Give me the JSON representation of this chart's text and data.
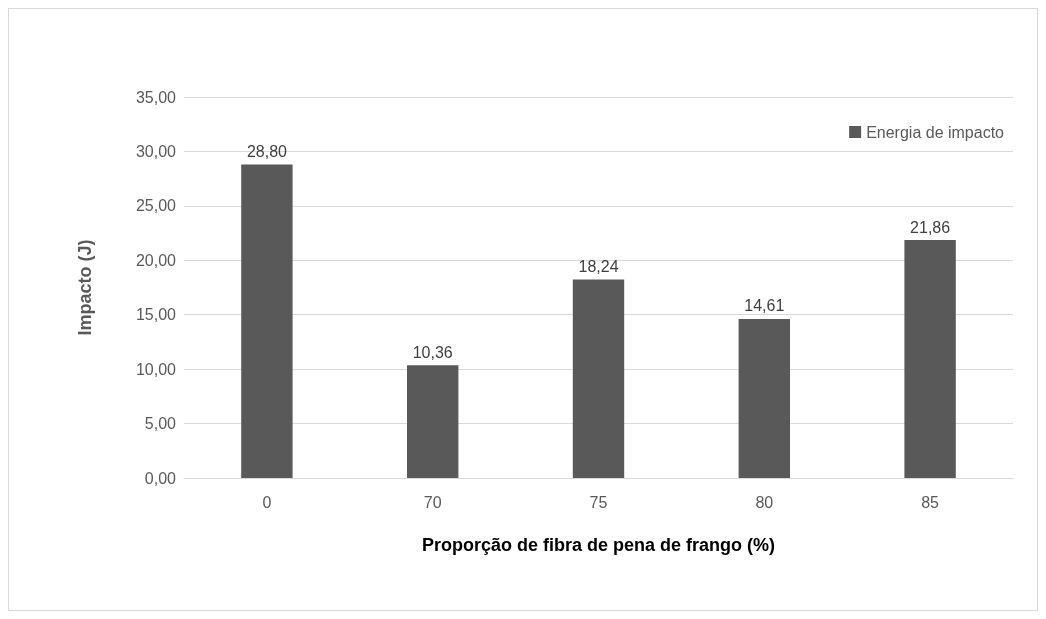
{
  "chart_data": {
    "type": "bar",
    "xlabel": "Proporção de fibra de pena de frango (%)",
    "ylabel": "Impacto (J)",
    "categories": [
      "0",
      "70",
      "75",
      "80",
      "85"
    ],
    "series": [
      {
        "name": "Energia de impacto",
        "color": "#595959",
        "values": [
          28.8,
          10.36,
          18.24,
          14.61,
          21.86
        ],
        "value_labels": [
          "28,80",
          "10,36",
          "18,24",
          "14,61",
          "21,86"
        ]
      }
    ],
    "ylim": [
      0,
      35
    ],
    "yticks": [
      {
        "value": 0,
        "label": "0,00"
      },
      {
        "value": 5,
        "label": "5,00"
      },
      {
        "value": 10,
        "label": "10,00"
      },
      {
        "value": 15,
        "label": "15,00"
      },
      {
        "value": 20,
        "label": "20,00"
      },
      {
        "value": 25,
        "label": "25,00"
      },
      {
        "value": 30,
        "label": "30,00"
      },
      {
        "value": 35,
        "label": "35,00"
      }
    ],
    "grid": "y",
    "legend": "top right"
  }
}
